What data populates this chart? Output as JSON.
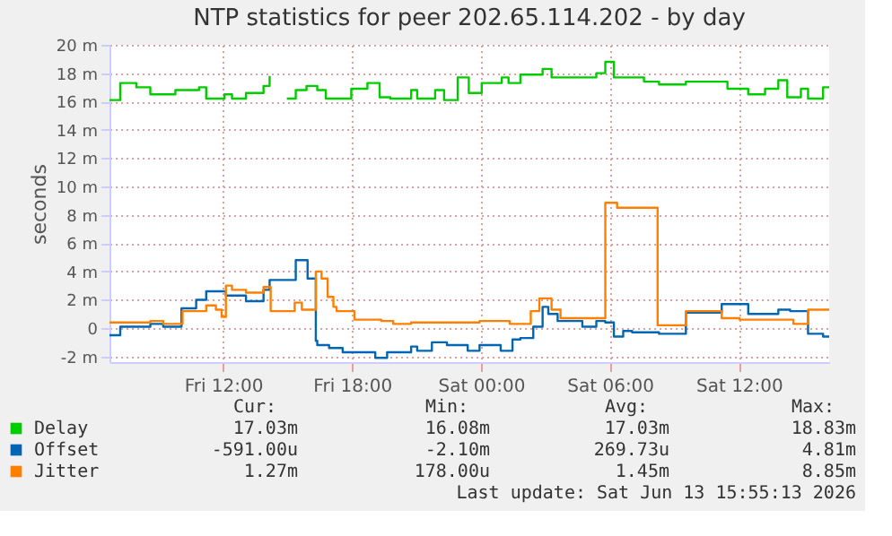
{
  "chart_data": {
    "type": "step",
    "title": "NTP statistics for peer 202.65.114.202 - by day",
    "ylabel": "seconds",
    "xlim": [
      "2026-06-12T06:43",
      "2026-06-13T16:12"
    ],
    "ylim": [
      -2.4,
      20
    ],
    "xticks": [
      {
        "value": "2026-06-12T12:00",
        "label": "Fri 12:00"
      },
      {
        "value": "2026-06-12T18:00",
        "label": "Fri 18:00"
      },
      {
        "value": "2026-06-13T00:00",
        "label": "Sat 00:00"
      },
      {
        "value": "2026-06-13T06:00",
        "label": "Sat 06:00"
      },
      {
        "value": "2026-06-13T12:00",
        "label": "Sat 12:00"
      }
    ],
    "yticks": [
      {
        "value": -2,
        "label": "-2 m"
      },
      0,
      {
        "value": 2,
        "label": "2 m"
      },
      {
        "value": 4,
        "label": "4 m"
      },
      {
        "value": 6,
        "label": "6 m"
      },
      {
        "value": 8,
        "label": "8 m"
      },
      {
        "value": 10,
        "label": "10 m"
      },
      {
        "value": 12,
        "label": "12 m"
      },
      {
        "value": 14,
        "label": "14 m"
      },
      {
        "value": 16,
        "label": "16 m"
      },
      {
        "value": 18,
        "label": "18 m"
      },
      {
        "value": 20,
        "label": "20 m"
      }
    ],
    "grid": true,
    "legend": "bottom",
    "series": [
      {
        "name": "Delay",
        "color": "#00cc00",
        "x": [
          "2026-06-12T06:43",
          "2026-06-12T07:13",
          "2026-06-12T07:58",
          "2026-06-12T08:37",
          "2026-06-12T09:47",
          "2026-06-12T10:53",
          "2026-06-12T11:13",
          "2026-06-12T12:04",
          "2026-06-12T12:25",
          "2026-06-12T13:04",
          "2026-06-12T13:53",
          "2026-06-12T14:10",
          "2026-06-12T14:47",
          "2026-06-12T14:58",
          "2026-06-12T15:23",
          "2026-06-12T15:53",
          "2026-06-12T16:23",
          "2026-06-12T16:47",
          "2026-06-12T17:58",
          "2026-06-12T18:43",
          "2026-06-12T19:17",
          "2026-06-12T19:47",
          "2026-06-12T20:45",
          "2026-06-12T21:02",
          "2026-06-12T21:52",
          "2026-06-12T22:17",
          "2026-06-12T22:55",
          "2026-06-12T23:26",
          "2026-06-13T00:02",
          "2026-06-13T00:58",
          "2026-06-13T01:17",
          "2026-06-13T01:50",
          "2026-06-13T02:52",
          "2026-06-13T03:17",
          "2026-06-13T05:22",
          "2026-06-13T05:47",
          "2026-06-13T06:11",
          "2026-06-13T07:35",
          "2026-06-13T08:17",
          "2026-06-13T09:32",
          "2026-06-13T11:28",
          "2026-06-13T12:26",
          "2026-06-13T13:13",
          "2026-06-13T13:50",
          "2026-06-13T14:15",
          "2026-06-13T14:53",
          "2026-06-13T15:13",
          "2026-06-13T15:55",
          "2026-06-13T16:12"
        ],
        "values": [
          16.1,
          17.3,
          17.0,
          16.5,
          16.8,
          17.0,
          16.2,
          16.5,
          16.2,
          16.6,
          17.1,
          17.8,
          null,
          16.2,
          16.8,
          17.1,
          16.8,
          16.2,
          16.9,
          17.3,
          16.3,
          16.2,
          16.8,
          16.2,
          16.8,
          16.1,
          17.7,
          16.6,
          17.3,
          17.7,
          17.3,
          17.9,
          18.3,
          17.7,
          18.0,
          18.8,
          17.7,
          17.4,
          17.2,
          17.4,
          16.9,
          16.5,
          16.9,
          17.5,
          16.3,
          16.9,
          16.2,
          17.0,
          17.0
        ]
      },
      {
        "name": "Offset",
        "color": "#0066b3",
        "x": [
          "2026-06-12T06:43",
          "2026-06-12T07:13",
          "2026-06-12T08:37",
          "2026-06-12T09:13",
          "2026-06-12T10:04",
          "2026-06-12T10:45",
          "2026-06-12T11:13",
          "2026-06-12T12:08",
          "2026-06-12T13:04",
          "2026-06-12T13:53",
          "2026-06-12T14:10",
          "2026-06-12T15:23",
          "2026-06-12T15:56",
          "2026-06-12T16:19",
          "2026-06-12T16:23",
          "2026-06-12T16:56",
          "2026-06-12T17:34",
          "2026-06-12T19:05",
          "2026-06-12T19:38",
          "2026-06-12T20:45",
          "2026-06-12T21:02",
          "2026-06-12T21:43",
          "2026-06-12T22:25",
          "2026-06-12T23:23",
          "2026-06-12T23:56",
          "2026-06-13T00:55",
          "2026-06-13T01:28",
          "2026-06-13T01:50",
          "2026-06-13T02:26",
          "2026-06-13T02:52",
          "2026-06-13T03:08",
          "2026-06-13T03:34",
          "2026-06-13T04:43",
          "2026-06-13T05:22",
          "2026-06-13T05:47",
          "2026-06-13T06:11",
          "2026-06-13T06:37",
          "2026-06-13T07:02",
          "2026-06-13T08:17",
          "2026-06-13T09:32",
          "2026-06-13T11:12",
          "2026-06-13T12:26",
          "2026-06-13T13:50",
          "2026-06-13T14:23",
          "2026-06-13T15:13",
          "2026-06-13T15:55",
          "2026-06-13T16:12"
        ],
        "values": [
          -0.5,
          0.1,
          0.3,
          0.1,
          1.4,
          2.0,
          2.6,
          2.3,
          1.9,
          2.7,
          3.4,
          4.8,
          3.5,
          -0.9,
          -1.2,
          -1.4,
          -1.7,
          -2.1,
          -1.7,
          -1.3,
          -1.6,
          -1.0,
          -1.2,
          -1.6,
          -1.2,
          -1.6,
          -0.8,
          -0.7,
          0.1,
          1.5,
          1.0,
          0.5,
          0.1,
          0.5,
          0.4,
          -0.6,
          -0.2,
          -0.3,
          -0.4,
          1.1,
          1.7,
          1.0,
          1.3,
          1.2,
          -0.4,
          -0.6,
          -0.6
        ]
      },
      {
        "name": "Jitter",
        "color": "#ff8000",
        "x": [
          "2026-06-12T06:43",
          "2026-06-12T08:37",
          "2026-06-12T09:13",
          "2026-06-12T10:07",
          "2026-06-12T11:13",
          "2026-06-12T11:40",
          "2026-06-12T11:56",
          "2026-06-12T12:08",
          "2026-06-12T12:25",
          "2026-06-12T13:04",
          "2026-06-12T13:53",
          "2026-06-12T14:13",
          "2026-06-12T15:20",
          "2026-06-12T15:40",
          "2026-06-12T16:19",
          "2026-06-12T16:35",
          "2026-06-12T16:52",
          "2026-06-12T17:08",
          "2026-06-12T17:17",
          "2026-06-12T18:07",
          "2026-06-12T19:22",
          "2026-06-12T19:55",
          "2026-06-12T20:45",
          "2026-06-12T23:56",
          "2026-06-13T01:20",
          "2026-06-13T02:19",
          "2026-06-13T02:43",
          "2026-06-13T03:17",
          "2026-06-13T03:42",
          "2026-06-13T05:47",
          "2026-06-13T06:20",
          "2026-06-13T08:13",
          "2026-06-13T09:32",
          "2026-06-13T11:12",
          "2026-06-13T12:02",
          "2026-06-13T14:32",
          "2026-06-13T15:13",
          "2026-06-13T16:12"
        ],
        "values": [
          0.4,
          0.5,
          0.3,
          1.2,
          1.6,
          1.3,
          0.8,
          3.0,
          2.7,
          2.5,
          2.9,
          1.2,
          1.8,
          1.3,
          4.0,
          3.5,
          2.2,
          1.5,
          1.2,
          0.6,
          0.5,
          0.3,
          0.4,
          0.5,
          0.3,
          1.2,
          2.1,
          1.3,
          0.7,
          8.85,
          8.5,
          0.2,
          1.2,
          0.7,
          0.6,
          0.3,
          1.3,
          1.27
        ]
      }
    ],
    "annotations": [
      "Cur:",
      "Min:",
      "Avg:",
      "Max:",
      "17.03m",
      "16.08m",
      "17.03m",
      "18.83m",
      "-591.00u",
      "-2.10m",
      "269.73u",
      "4.81m",
      "1.27m",
      "178.00u",
      "1.45m",
      "8.85m",
      "Last update: Sat Jun 13 15:55:13 2026"
    ]
  }
}
